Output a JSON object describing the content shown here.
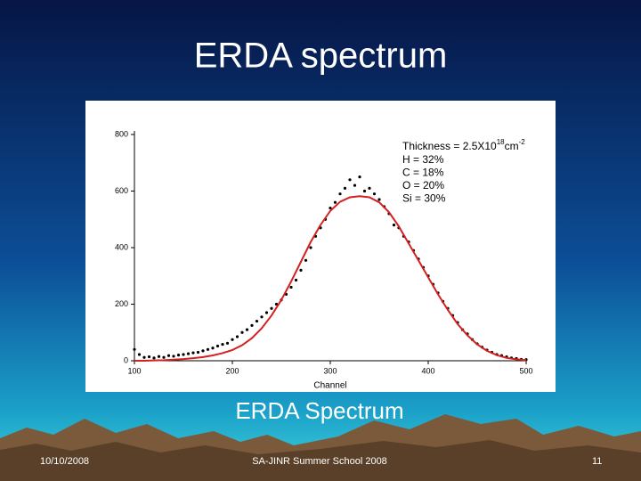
{
  "slide": {
    "title": "ERDA spectrum",
    "caption": "ERDA Spectrum",
    "date": "10/10/2008",
    "footer": "SA-JINR Summer School 2008",
    "page": "11"
  },
  "chart_data": {
    "type": "scatter",
    "xlabel": "Channel",
    "annotation": {
      "thickness": [
        "Thickness = 2.5X10",
        "18",
        "cm",
        "-2"
      ],
      "lines": [
        "H = 32%",
        "C = 18%",
        "O = 20%",
        "Si = 30%"
      ]
    },
    "xlim": [
      100,
      500
    ],
    "xticks": [
      100,
      200,
      300,
      400,
      500
    ],
    "ylim": [
      0,
      800
    ],
    "yticks": [
      0,
      200,
      400,
      600,
      800
    ],
    "series": [
      {
        "type": "scatter",
        "color": "#000000",
        "x": [
          100,
          105,
          110,
          115,
          120,
          125,
          130,
          135,
          140,
          145,
          150,
          155,
          160,
          165,
          170,
          175,
          180,
          185,
          190,
          195,
          200,
          205,
          210,
          215,
          220,
          225,
          230,
          235,
          240,
          245,
          250,
          255,
          260,
          265,
          270,
          275,
          280,
          285,
          290,
          295,
          300,
          305,
          310,
          315,
          320,
          325,
          330,
          335,
          340,
          345,
          350,
          355,
          360,
          365,
          370,
          375,
          380,
          385,
          390,
          395,
          400,
          405,
          410,
          415,
          420,
          425,
          430,
          435,
          440,
          445,
          450,
          455,
          460,
          465,
          470,
          475,
          480,
          485,
          490,
          495,
          500
        ],
        "values": [
          40,
          22,
          12,
          14,
          10,
          15,
          12,
          18,
          16,
          20,
          22,
          25,
          28,
          30,
          35,
          40,
          45,
          52,
          58,
          62,
          75,
          85,
          100,
          110,
          125,
          140,
          155,
          170,
          185,
          200,
          215,
          235,
          260,
          285,
          320,
          355,
          400,
          440,
          470,
          500,
          540,
          560,
          590,
          610,
          640,
          620,
          650,
          600,
          610,
          590,
          570,
          545,
          520,
          480,
          470,
          440,
          420,
          390,
          360,
          330,
          300,
          270,
          240,
          210,
          185,
          160,
          135,
          110,
          95,
          75,
          60,
          48,
          38,
          30,
          22,
          18,
          14,
          10,
          8,
          5,
          4
        ]
      },
      {
        "type": "line",
        "color": "#d42020",
        "x": [
          100,
          110,
          120,
          130,
          140,
          150,
          160,
          170,
          180,
          190,
          200,
          210,
          220,
          230,
          240,
          250,
          260,
          270,
          280,
          290,
          300,
          310,
          320,
          330,
          340,
          350,
          360,
          370,
          380,
          390,
          400,
          410,
          420,
          430,
          440,
          450,
          460,
          470,
          480,
          490,
          500
        ],
        "values": [
          0,
          0,
          1,
          2,
          4,
          6,
          9,
          13,
          19,
          27,
          38,
          55,
          80,
          115,
          160,
          215,
          280,
          350,
          420,
          480,
          530,
          562,
          578,
          582,
          578,
          560,
          525,
          475,
          415,
          355,
          295,
          235,
          180,
          130,
          90,
          58,
          35,
          20,
          10,
          5,
          2
        ]
      }
    ]
  }
}
